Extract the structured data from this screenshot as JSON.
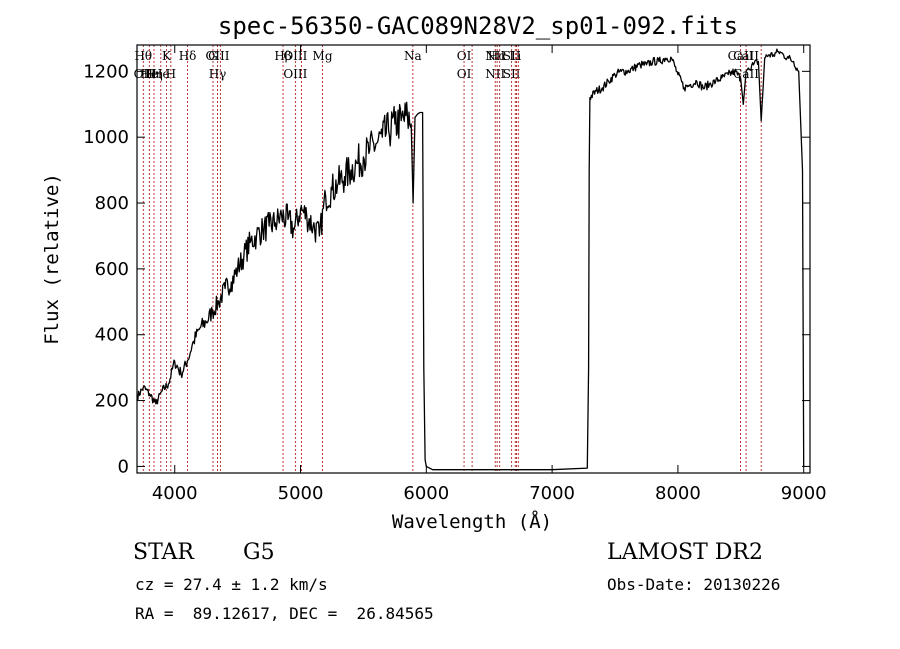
{
  "chart_data": {
    "type": "line",
    "title": "spec-56350-GAC089N28V2_sp01-092.fits",
    "xlabel": "Wavelength (Å)",
    "ylabel": "Flux (relative)",
    "xlim": [
      3700,
      9050
    ],
    "ylim": [
      -20,
      1280
    ],
    "xticks": [
      4000,
      5000,
      6000,
      7000,
      8000,
      9000
    ],
    "yticks": [
      0,
      200,
      400,
      600,
      800,
      1000,
      1200
    ],
    "grid": false,
    "series": [
      {
        "name": "flux",
        "x": [
          3700,
          3750,
          3800,
          3850,
          3900,
          3950,
          4000,
          4050,
          4100,
          4150,
          4200,
          4250,
          4300,
          4350,
          4400,
          4450,
          4500,
          4550,
          4600,
          4650,
          4700,
          4750,
          4800,
          4850,
          4900,
          4950,
          5000,
          5050,
          5100,
          5150,
          5200,
          5250,
          5300,
          5350,
          5400,
          5450,
          5500,
          5550,
          5600,
          5650,
          5700,
          5750,
          5800,
          5850,
          5880,
          5895,
          5910,
          5930,
          5950,
          5970,
          5980,
          5990,
          6000,
          6050,
          6500,
          7000,
          7280,
          7290,
          7295,
          7300,
          7350,
          7400,
          7450,
          7500,
          7550,
          7600,
          7650,
          7700,
          7750,
          7800,
          7850,
          7900,
          7950,
          8000,
          8050,
          8100,
          8150,
          8200,
          8250,
          8300,
          8350,
          8400,
          8450,
          8498,
          8520,
          8542,
          8560,
          8600,
          8640,
          8662,
          8690,
          8720,
          8760,
          8800,
          8840,
          8880,
          8920,
          8960,
          8990,
          9000
        ],
        "y": [
          210,
          240,
          220,
          190,
          230,
          250,
          320,
          280,
          320,
          380,
          420,
          440,
          470,
          500,
          540,
          560,
          600,
          640,
          680,
          700,
          720,
          730,
          740,
          760,
          750,
          720,
          780,
          760,
          730,
          700,
          820,
          840,
          860,
          880,
          900,
          920,
          940,
          960,
          980,
          1000,
          1020,
          1040,
          1050,
          1060,
          1040,
          800,
          1060,
          1070,
          1075,
          1075,
          300,
          20,
          0,
          -10,
          -10,
          -10,
          -5,
          300,
          900,
          1120,
          1140,
          1150,
          1170,
          1190,
          1200,
          1200,
          1210,
          1220,
          1220,
          1230,
          1230,
          1240,
          1240,
          1190,
          1150,
          1160,
          1170,
          1150,
          1160,
          1170,
          1180,
          1190,
          1200,
          1180,
          1100,
          1200,
          1210,
          1220,
          1230,
          1050,
          1240,
          1250,
          1250,
          1260,
          1250,
          1240,
          1230,
          1200,
          900,
          0
        ]
      }
    ],
    "line_markers": [
      {
        "x": 3750,
        "labels": [
          "Hθ",
          "OII"
        ]
      },
      {
        "x": 3798,
        "labels": [
          "",
          "He"
        ]
      },
      {
        "x": 3835,
        "labels": [
          "",
          "Hη"
        ]
      },
      {
        "x": 3889,
        "labels": [
          "",
          "He"
        ]
      },
      {
        "x": 3934,
        "labels": [
          "K"
        ]
      },
      {
        "x": 3969,
        "labels": [
          "",
          "H"
        ]
      },
      {
        "x": 4102,
        "labels": [
          "Hδ"
        ]
      },
      {
        "x": 4304,
        "labels": [
          "G"
        ]
      },
      {
        "x": 4340,
        "labels": [
          "OIII",
          "Hγ"
        ]
      },
      {
        "x": 4363,
        "labels": []
      },
      {
        "x": 4861,
        "labels": [
          "Hβ"
        ]
      },
      {
        "x": 4959,
        "labels": [
          "OIII",
          "OIII"
        ]
      },
      {
        "x": 5007,
        "labels": []
      },
      {
        "x": 5175,
        "labels": [
          "Mg"
        ]
      },
      {
        "x": 5893,
        "labels": [
          "Na"
        ]
      },
      {
        "x": 6300,
        "labels": [
          "OI",
          "OI"
        ]
      },
      {
        "x": 6364,
        "labels": []
      },
      {
        "x": 6548,
        "labels": [
          "NII",
          "NII"
        ]
      },
      {
        "x": 6563,
        "labels": [
          "Hα"
        ]
      },
      {
        "x": 6583,
        "labels": []
      },
      {
        "x": 6678,
        "labels": [
          "SII",
          "SII"
        ]
      },
      {
        "x": 6707,
        "labels": [
          "Li"
        ]
      },
      {
        "x": 6717,
        "labels": []
      },
      {
        "x": 6731,
        "labels": []
      },
      {
        "x": 8498,
        "labels": [
          "CaII"
        ]
      },
      {
        "x": 8542,
        "labels": [
          "CaII",
          "CaII"
        ]
      },
      {
        "x": 8662,
        "labels": []
      }
    ]
  },
  "info": {
    "object_class": "STAR",
    "subclass": "G5",
    "survey": "LAMOST DR2",
    "cz": "cz = 27.4 ± 1.2 km/s",
    "obs_date": "Obs-Date: 20130226",
    "coords": "RA =  89.12617, DEC =  26.84565"
  }
}
